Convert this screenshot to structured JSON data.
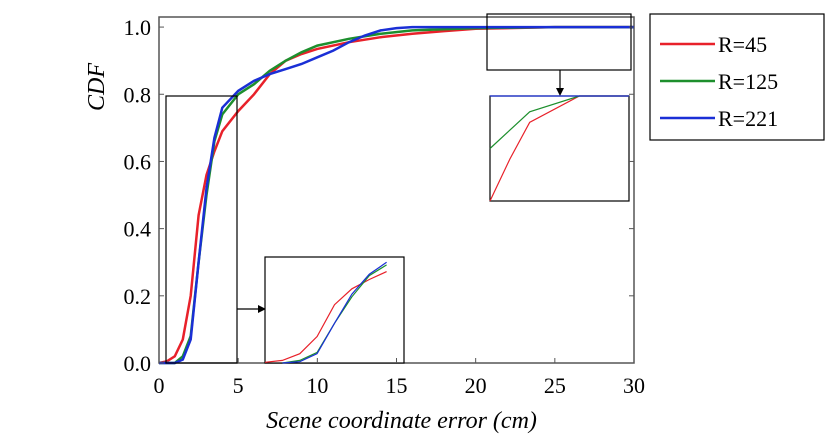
{
  "chart_data": {
    "type": "line",
    "title": "",
    "xlabel": "Scene coordinate error (cm)",
    "ylabel": "CDF",
    "xlim": [
      0,
      30
    ],
    "ylim": [
      0,
      1.03
    ],
    "xticks": [
      "0",
      "5",
      "10",
      "15",
      "20",
      "25",
      "30"
    ],
    "yticks": [
      "0.0",
      "0.2",
      "0.4",
      "0.6",
      "0.8",
      "1.0"
    ],
    "grid": false,
    "legend_position": "outside-right",
    "series": [
      {
        "name": "R=45",
        "color": "#e8212a",
        "points": [
          [
            0,
            0
          ],
          [
            0.5,
            0.005
          ],
          [
            1.0,
            0.02
          ],
          [
            1.5,
            0.07
          ],
          [
            2.0,
            0.2
          ],
          [
            2.5,
            0.44
          ],
          [
            3.0,
            0.56
          ],
          [
            3.5,
            0.63
          ],
          [
            4.0,
            0.69
          ],
          [
            5.0,
            0.75
          ],
          [
            6.0,
            0.8
          ],
          [
            7.0,
            0.86
          ],
          [
            8.0,
            0.9
          ],
          [
            9.0,
            0.92
          ],
          [
            10.0,
            0.935
          ],
          [
            12.0,
            0.955
          ],
          [
            14.0,
            0.97
          ],
          [
            16.0,
            0.98
          ],
          [
            18.0,
            0.988
          ],
          [
            20.0,
            0.995
          ],
          [
            25.0,
            1.0
          ],
          [
            30.0,
            1.0
          ]
        ]
      },
      {
        "name": "R=125",
        "color": "#1d8f2d",
        "points": [
          [
            0,
            0
          ],
          [
            1.0,
            0.0
          ],
          [
            1.5,
            0.02
          ],
          [
            2.0,
            0.08
          ],
          [
            2.5,
            0.3
          ],
          [
            3.0,
            0.5
          ],
          [
            3.5,
            0.66
          ],
          [
            4.0,
            0.74
          ],
          [
            5.0,
            0.8
          ],
          [
            6.0,
            0.83
          ],
          [
            7.0,
            0.87
          ],
          [
            8.0,
            0.9
          ],
          [
            9.0,
            0.925
          ],
          [
            10.0,
            0.945
          ],
          [
            12.0,
            0.965
          ],
          [
            14.0,
            0.98
          ],
          [
            16.0,
            0.99
          ],
          [
            20.0,
            0.997
          ],
          [
            25.0,
            1.0
          ],
          [
            30.0,
            1.0
          ]
        ]
      },
      {
        "name": "R=221",
        "color": "#1a2fd6",
        "points": [
          [
            0,
            0
          ],
          [
            1.0,
            0.0
          ],
          [
            1.5,
            0.01
          ],
          [
            2.0,
            0.07
          ],
          [
            2.5,
            0.3
          ],
          [
            3.0,
            0.52
          ],
          [
            3.5,
            0.67
          ],
          [
            4.0,
            0.76
          ],
          [
            5.0,
            0.81
          ],
          [
            6.0,
            0.84
          ],
          [
            7.0,
            0.86
          ],
          [
            8.0,
            0.875
          ],
          [
            9.0,
            0.89
          ],
          [
            10.0,
            0.91
          ],
          [
            11.0,
            0.93
          ],
          [
            12.0,
            0.955
          ],
          [
            13.0,
            0.975
          ],
          [
            14.0,
            0.99
          ],
          [
            15.0,
            0.997
          ],
          [
            16.0,
            1.0
          ],
          [
            30.0,
            1.0
          ]
        ]
      }
    ]
  }
}
